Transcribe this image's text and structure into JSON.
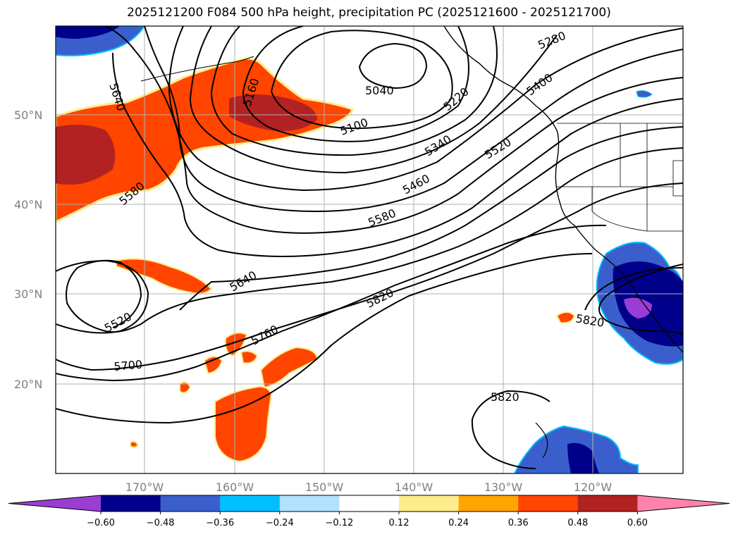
{
  "title": "2025121200 F084 500 hPa height, precipitation PC (2025121600 - 2025121700)",
  "lat_labels": [
    "50°N",
    "40°N",
    "30°N",
    "20°N"
  ],
  "lon_labels": [
    "170°W",
    "160°W",
    "150°W",
    "140°W",
    "130°W",
    "120°W"
  ],
  "contour_labels": [
    "5040",
    "5100",
    "5160",
    "5220",
    "5280",
    "5340",
    "5400",
    "5460",
    "5520",
    "5580",
    "5640",
    "5640",
    "5700",
    "5760",
    "5820",
    "5820",
    "5820",
    "5520",
    "5580"
  ],
  "colorbar": {
    "colors": [
      "#9a3dd4",
      "#00008b",
      "#3a5fcd",
      "#00bfff",
      "#b0e2ff",
      "#ffffff",
      "#ffec8b",
      "#ffa500",
      "#ff4500",
      "#b22222",
      "#ff82ab"
    ],
    "ticks": [
      "−0.60",
      "−0.48",
      "−0.36",
      "−0.24",
      "−0.12",
      "0.12",
      "0.24",
      "0.36",
      "0.48",
      "0.60"
    ]
  }
}
